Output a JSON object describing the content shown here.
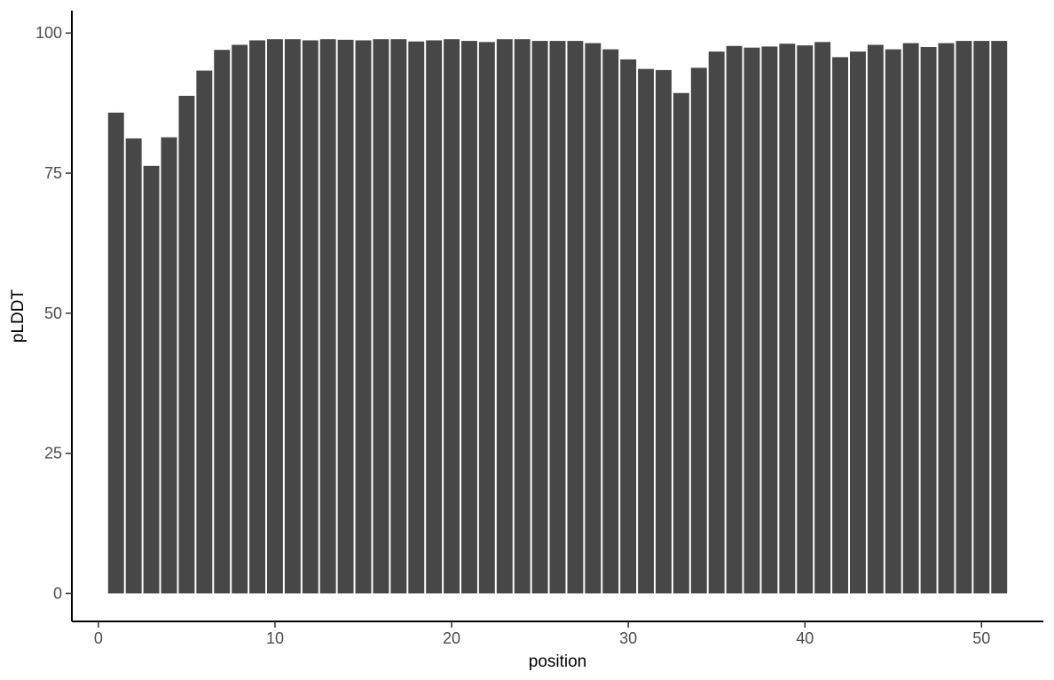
{
  "chart_data": {
    "type": "bar",
    "title": "",
    "xlabel": "position",
    "ylabel": "pLDDT",
    "x": [
      1,
      2,
      3,
      4,
      5,
      6,
      7,
      8,
      9,
      10,
      11,
      12,
      13,
      14,
      15,
      16,
      17,
      18,
      19,
      20,
      21,
      22,
      23,
      24,
      25,
      26,
      27,
      28,
      29,
      30,
      31,
      32,
      33,
      34,
      35,
      36,
      37,
      38,
      39,
      40,
      41,
      42,
      43,
      44,
      45,
      46,
      47,
      48,
      49,
      50,
      51
    ],
    "values": [
      85.8,
      81.2,
      76.3,
      81.4,
      88.8,
      93.3,
      97.0,
      97.9,
      98.7,
      98.9,
      98.9,
      98.7,
      98.9,
      98.8,
      98.7,
      98.9,
      98.9,
      98.5,
      98.7,
      98.9,
      98.6,
      98.4,
      98.9,
      98.9,
      98.6,
      98.6,
      98.6,
      98.2,
      97.1,
      95.3,
      93.6,
      93.4,
      89.3,
      93.8,
      96.7,
      97.7,
      97.4,
      97.6,
      98.1,
      97.8,
      98.4,
      95.7,
      96.7,
      97.9,
      97.1,
      98.2,
      97.5,
      98.2,
      98.6,
      98.6,
      98.6
    ],
    "xlim": [
      -1.5,
      53.5
    ],
    "ylim": [
      -5.0,
      104.0
    ],
    "xticks": [
      0,
      10,
      20,
      30,
      40,
      50
    ],
    "yticks": [
      0,
      25,
      50,
      75,
      100
    ],
    "xtick_labels": [
      "0",
      "10",
      "20",
      "30",
      "40",
      "50"
    ],
    "ytick_labels": [
      "0",
      "25",
      "50",
      "75",
      "100"
    ],
    "bar_color": "#474747",
    "axis_color": "#000000",
    "tick_label_color": "#4d4d4d",
    "background": "#ffffff",
    "grid": false
  }
}
